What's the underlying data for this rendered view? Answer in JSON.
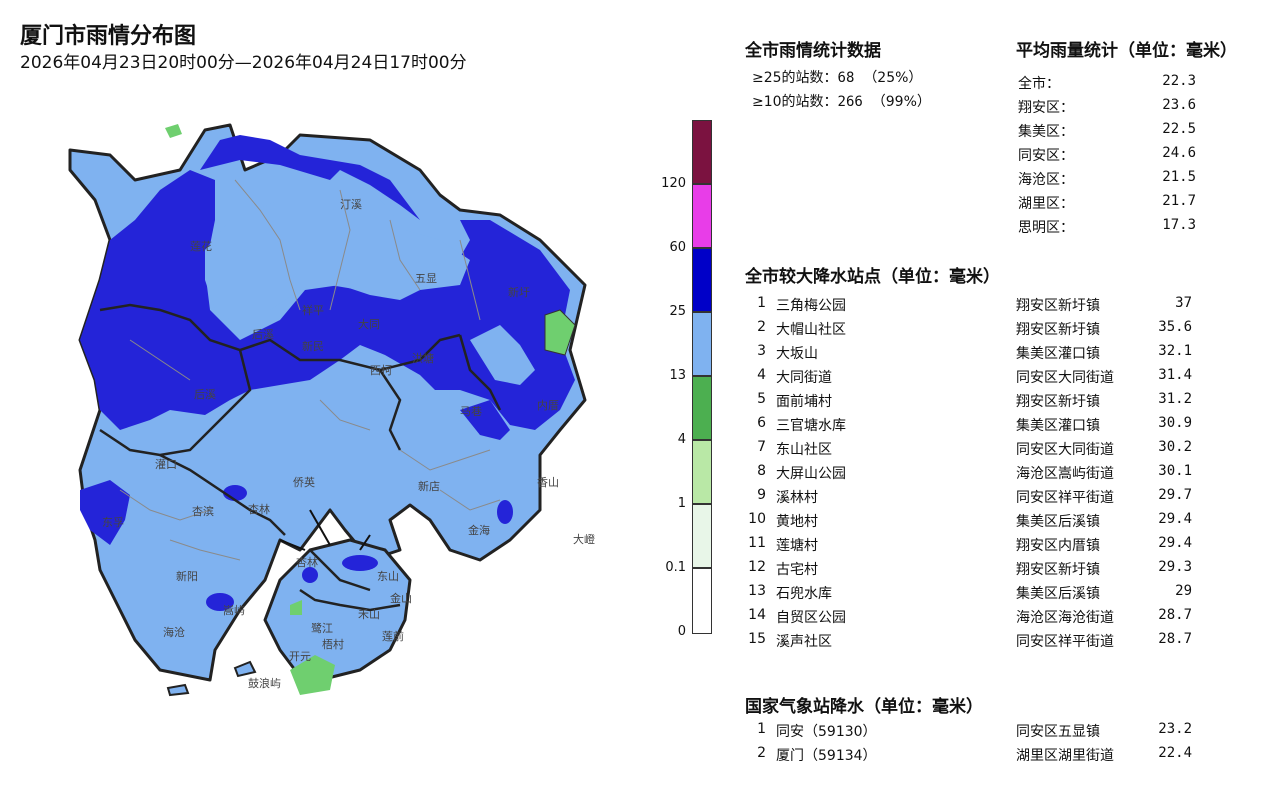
{
  "header": {
    "title": "厦门市雨情分布图",
    "period": "2026年04月23日20时00分—2026年04月24日17时00分"
  },
  "legend": {
    "ticks": [
      "120",
      "60",
      "25",
      "13",
      "4",
      "1",
      "0.1",
      "0"
    ],
    "colors": [
      "#7b1240",
      "#e83de8",
      "#0000c8",
      "#7fb2f0",
      "#4caf50",
      "#b9e8a6",
      "#e8f6e8",
      "#ffffff"
    ]
  },
  "map": {
    "labels": [
      "莲花",
      "汀溪",
      "五显",
      "新圩",
      "祥平",
      "大同",
      "新民",
      "洪塘",
      "后溪",
      "西柯",
      "马巷",
      "内厝",
      "灌口",
      "杏林",
      "侨英",
      "后溪",
      "东孚",
      "杏滨",
      "新阳",
      "海沧",
      "嵩屿",
      "东山",
      "金山",
      "禾山",
      "莲前",
      "梧村",
      "鼓浪屿",
      "新店",
      "香山",
      "金海",
      "大嶝",
      "杏林",
      "鹭江",
      "开元"
    ]
  },
  "stats": {
    "title": "全市雨情统计数据",
    "rows": [
      {
        "label": "≥25的站数：",
        "count": "68",
        "pct": "（25%）"
      },
      {
        "label": "≥10的站数：",
        "count": "266",
        "pct": "（99%）"
      }
    ]
  },
  "avg": {
    "title": "平均雨量统计（单位：毫米）",
    "rows": [
      {
        "name": "全市：",
        "value": "22.3"
      },
      {
        "name": "翔安区：",
        "value": "23.6"
      },
      {
        "name": "集美区：",
        "value": "22.5"
      },
      {
        "name": "同安区：",
        "value": "24.6"
      },
      {
        "name": "海沧区：",
        "value": "21.5"
      },
      {
        "name": "湖里区：",
        "value": "21.7"
      },
      {
        "name": "思明区：",
        "value": "17.3"
      }
    ]
  },
  "stations": {
    "title": "全市较大降水站点（单位：毫米）",
    "rows": [
      {
        "idx": "1",
        "name": "三角梅公园",
        "loc": "翔安区新圩镇",
        "value": "37"
      },
      {
        "idx": "2",
        "name": "大帽山社区",
        "loc": "翔安区新圩镇",
        "value": "35.6"
      },
      {
        "idx": "3",
        "name": "大坂山",
        "loc": "集美区灌口镇",
        "value": "32.1"
      },
      {
        "idx": "4",
        "name": "大同街道",
        "loc": "同安区大同街道",
        "value": "31.4"
      },
      {
        "idx": "5",
        "name": "面前埔村",
        "loc": "翔安区新圩镇",
        "value": "31.2"
      },
      {
        "idx": "6",
        "name": "三官塘水库",
        "loc": "集美区灌口镇",
        "value": "30.9"
      },
      {
        "idx": "7",
        "name": "东山社区",
        "loc": "同安区大同街道",
        "value": "30.2"
      },
      {
        "idx": "8",
        "name": "大屏山公园",
        "loc": "海沧区嵩屿街道",
        "value": "30.1"
      },
      {
        "idx": "9",
        "name": "溪林村",
        "loc": "同安区祥平街道",
        "value": "29.7"
      },
      {
        "idx": "10",
        "name": "黄地村",
        "loc": "集美区后溪镇",
        "value": "29.4"
      },
      {
        "idx": "11",
        "name": "莲塘村",
        "loc": "翔安区内厝镇",
        "value": "29.4"
      },
      {
        "idx": "12",
        "name": "古宅村",
        "loc": "翔安区新圩镇",
        "value": "29.3"
      },
      {
        "idx": "13",
        "name": "石兜水库",
        "loc": "集美区后溪镇",
        "value": "29"
      },
      {
        "idx": "14",
        "name": "自贸区公园",
        "loc": "海沧区海沧街道",
        "value": "28.7"
      },
      {
        "idx": "15",
        "name": "溪声社区",
        "loc": "同安区祥平街道",
        "value": "28.7"
      }
    ]
  },
  "national": {
    "title": "国家气象站降水（单位：毫米）",
    "rows": [
      {
        "idx": "1",
        "name": "同安（59130）",
        "loc": "同安区五显镇",
        "value": "23.2"
      },
      {
        "idx": "2",
        "name": "厦门（59134）",
        "loc": "湖里区湖里街道",
        "value": "22.4"
      }
    ]
  }
}
